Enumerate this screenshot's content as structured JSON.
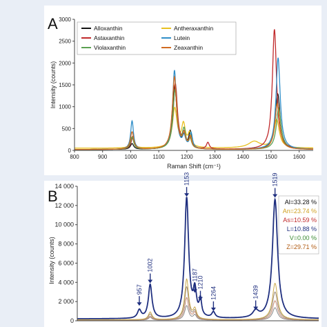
{
  "chart_data": [
    {
      "panel": "A",
      "type": "line",
      "xlabel": "Raman Shift (cm⁻¹)",
      "ylabel": "Intensity (counts)",
      "xlim": [
        800,
        1650
      ],
      "ylim": [
        0,
        3000
      ],
      "xticks": [
        800,
        900,
        1000,
        1100,
        1200,
        1300,
        1400,
        1500,
        1600
      ],
      "yticks": [
        0,
        500,
        1000,
        1500,
        2000,
        2500,
        3000
      ],
      "legend_position": "top-left",
      "legend_columns": 2,
      "series": [
        {
          "name": "Alloxanthin",
          "color": "#111111",
          "peaks": [
            [
              1005,
              130,
              7
            ],
            [
              1157,
              1450,
              9
            ],
            [
              1190,
              250,
              7
            ],
            [
              1212,
              380,
              6
            ],
            [
              1524,
              1270,
              10
            ]
          ],
          "baseline": 20
        },
        {
          "name": "Antheraxanthin",
          "color": "#e8c020",
          "peaks": [
            [
              1005,
              250,
              7
            ],
            [
              1157,
              900,
              10
            ],
            [
              1188,
              500,
              8
            ],
            [
              1210,
              300,
              7
            ],
            [
              1440,
              150,
              25
            ],
            [
              1520,
              650,
              11
            ]
          ],
          "baseline": 50
        },
        {
          "name": "Astaxanthin",
          "color": "#c0282a",
          "peaks": [
            [
              1008,
              300,
              7
            ],
            [
              1159,
              1500,
              9
            ],
            [
              1190,
              300,
              7
            ],
            [
              1212,
              250,
              6
            ],
            [
              1275,
              150,
              6
            ],
            [
              1512,
              2750,
              9
            ]
          ],
          "baseline": 20
        },
        {
          "name": "Lutein",
          "color": "#2f8ec8",
          "peaks": [
            [
              1005,
              650,
              6
            ],
            [
              1156,
              1800,
              8
            ],
            [
              1190,
              250,
              7
            ],
            [
              1215,
              350,
              6
            ],
            [
              1525,
              2100,
              9
            ]
          ],
          "baseline": 20
        },
        {
          "name": "Violaxanthin",
          "color": "#5aa050",
          "peaks": [
            [
              1005,
              280,
              7
            ],
            [
              1158,
              1350,
              9
            ],
            [
              1190,
              400,
              7
            ],
            [
              1212,
              200,
              6
            ],
            [
              1527,
              950,
              10
            ]
          ],
          "baseline": 20
        },
        {
          "name": "Zeaxanthin",
          "color": "#d06a20",
          "peaks": [
            [
              1005,
              400,
              7
            ],
            [
              1156,
              1650,
              9
            ],
            [
              1190,
              300,
              7
            ],
            [
              1212,
              250,
              6
            ],
            [
              1522,
              1050,
              10
            ]
          ],
          "baseline": 20
        }
      ]
    },
    {
      "panel": "B",
      "type": "line",
      "ylabel": "Intensity (counts)",
      "xlim": [
        700,
        1700
      ],
      "ylim": [
        0,
        14000
      ],
      "yticks": [
        0,
        2000,
        4000,
        6000,
        8000,
        10000,
        12000,
        14000
      ],
      "ytick_labels": [
        "0",
        "2 000",
        "4 000",
        "6 000",
        "8 000",
        "10 000",
        "12 000",
        "14 000"
      ],
      "annotations": [
        {
          "label": "957",
          "x": 957,
          "y": 1350
        },
        {
          "label": "1002",
          "x": 1002,
          "y": 3700
        },
        {
          "label": "1153",
          "x": 1153,
          "y": 12700
        },
        {
          "label": "1187",
          "x": 1187,
          "y": 2700
        },
        {
          "label": "1210",
          "x": 1210,
          "y": 1900
        },
        {
          "label": "1264",
          "x": 1264,
          "y": 800
        },
        {
          "label": "1439",
          "x": 1439,
          "y": 900
        },
        {
          "label": "1519",
          "x": 1519,
          "y": 12600
        }
      ],
      "legend_position": "top-right",
      "legend": [
        {
          "label": "Al=33.28 %",
          "color": "#111111"
        },
        {
          "label": "An=23.74 %",
          "color": "#d0a020"
        },
        {
          "label": "As=10.59 %",
          "color": "#c0282a"
        },
        {
          "label": "L=10.88 %",
          "color": "#1f2f7f"
        },
        {
          "label": "V=0.00 %",
          "color": "#3a8a30"
        },
        {
          "label": "Z=29.71 %",
          "color": "#b05a10"
        }
      ],
      "series": [
        {
          "name": "Al=33.28 %",
          "color": "#1f2f7f",
          "peaks": [
            [
              957,
              850,
              9
            ],
            [
              1002,
              3500,
              9
            ],
            [
              1153,
              12500,
              10
            ],
            [
              1187,
              2600,
              8
            ],
            [
              1210,
              1700,
              6
            ],
            [
              1264,
              600,
              8
            ],
            [
              1439,
              700,
              14
            ],
            [
              1519,
              12400,
              13
            ]
          ],
          "baseline": 200
        },
        {
          "color": "#c9a84a",
          "peaks": [
            [
              1002,
              800,
              9
            ],
            [
              1153,
              4200,
              10
            ],
            [
              1187,
              1000,
              8
            ],
            [
              1519,
              3800,
              13
            ]
          ],
          "baseline": 100
        },
        {
          "color": "#9a8a7a",
          "peaks": [
            [
              1002,
              600,
              9
            ],
            [
              1153,
              3400,
              10
            ],
            [
              1187,
              800,
              8
            ],
            [
              1519,
              2900,
              13
            ]
          ],
          "baseline": 100
        },
        {
          "color": "#c58870",
          "peaks": [
            [
              1002,
              400,
              9
            ],
            [
              1153,
              2300,
              10
            ],
            [
              1187,
              700,
              8
            ],
            [
              1519,
              2000,
              13
            ]
          ],
          "baseline": 80
        },
        {
          "color": "#888888",
          "peaks": [
            [
              1002,
              300,
              9
            ],
            [
              1153,
              1500,
              10
            ],
            [
              1187,
              500,
              8
            ],
            [
              1519,
              1300,
              13
            ]
          ],
          "baseline": 60
        }
      ]
    }
  ],
  "panel_labels": {
    "a": "A",
    "b": "B"
  }
}
